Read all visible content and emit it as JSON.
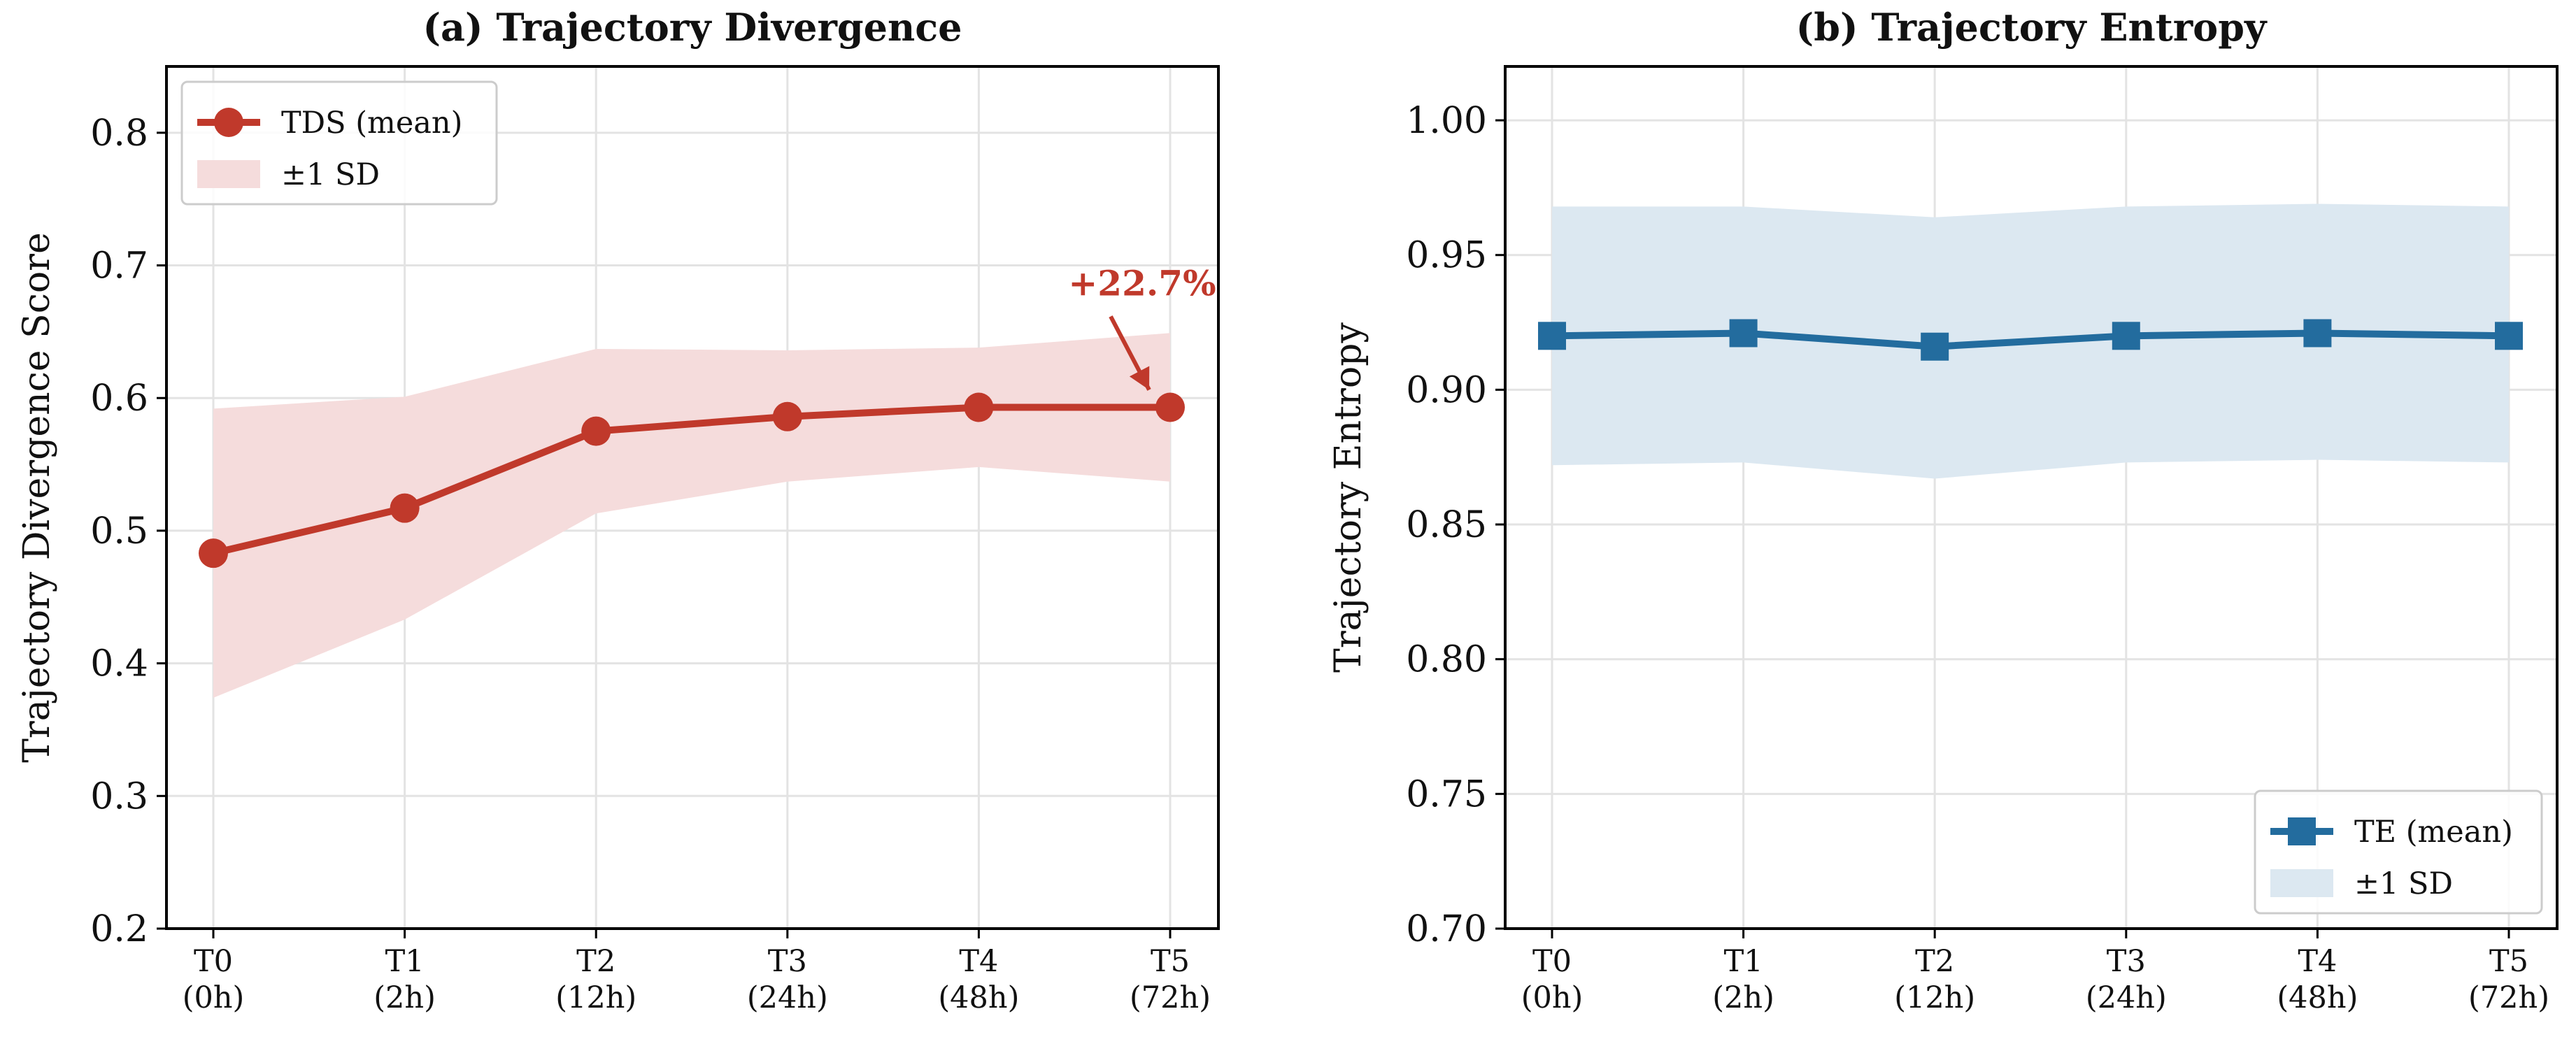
{
  "chart_data": [
    {
      "type": "line",
      "title": "(a) Trajectory Divergence",
      "xlabel": "",
      "ylabel": "Trajectory Divergence Score",
      "categories": [
        "T0\n(0h)",
        "T1\n(2h)",
        "T2\n(12h)",
        "T3\n(24h)",
        "T4\n(48h)",
        "T5\n(72h)"
      ],
      "ylim": [
        0.2,
        0.85
      ],
      "yticks": [
        0.2,
        0.3,
        0.4,
        0.5,
        0.6,
        0.7,
        0.8
      ],
      "grid": true,
      "legend_placement": "top-left",
      "color": "#c0392b",
      "band_color": "#f5dcdc",
      "marker": "circle",
      "series": [
        {
          "name": "TDS (mean)",
          "values": [
            0.483,
            0.517,
            0.575,
            0.586,
            0.593,
            0.593
          ],
          "band_label": "±1 SD",
          "lower": [
            0.374,
            0.433,
            0.513,
            0.537,
            0.548,
            0.537
          ],
          "upper": [
            0.592,
            0.601,
            0.637,
            0.636,
            0.638,
            0.649
          ]
        }
      ],
      "annotation": {
        "text": "+22.7%",
        "point_index": 5
      }
    },
    {
      "type": "line",
      "title": "(b) Trajectory Entropy",
      "xlabel": "",
      "ylabel": "Trajectory Entropy",
      "categories": [
        "T0\n(0h)",
        "T1\n(2h)",
        "T2\n(12h)",
        "T3\n(24h)",
        "T4\n(48h)",
        "T5\n(72h)"
      ],
      "ylim": [
        0.7,
        1.02
      ],
      "yticks": [
        0.7,
        0.75,
        0.8,
        0.85,
        0.9,
        0.95,
        1.0
      ],
      "grid": true,
      "legend_placement": "bottom-right",
      "color": "#236c9e",
      "band_color": "#dce8f1",
      "marker": "square",
      "series": [
        {
          "name": "TE (mean)",
          "values": [
            0.92,
            0.921,
            0.916,
            0.92,
            0.921,
            0.92
          ],
          "band_label": "±1 SD",
          "lower": [
            0.872,
            0.873,
            0.867,
            0.873,
            0.874,
            0.873
          ],
          "upper": [
            0.968,
            0.968,
            0.964,
            0.968,
            0.969,
            0.968
          ]
        }
      ]
    }
  ]
}
